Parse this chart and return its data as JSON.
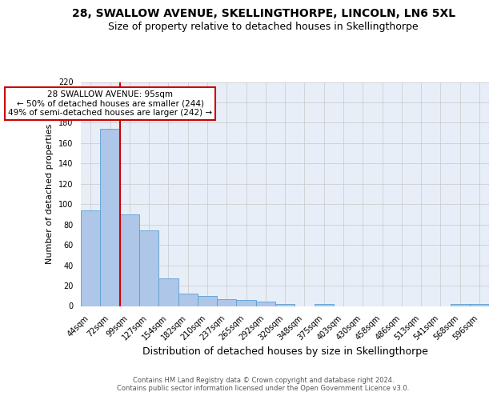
{
  "title": "28, SWALLOW AVENUE, SKELLINGTHORPE, LINCOLN, LN6 5XL",
  "subtitle": "Size of property relative to detached houses in Skellingthorpe",
  "xlabel": "Distribution of detached houses by size in Skellingthorpe",
  "ylabel": "Number of detached properties",
  "categories": [
    "44sqm",
    "72sqm",
    "99sqm",
    "127sqm",
    "154sqm",
    "182sqm",
    "210sqm",
    "237sqm",
    "265sqm",
    "292sqm",
    "320sqm",
    "348sqm",
    "375sqm",
    "403sqm",
    "430sqm",
    "458sqm",
    "486sqm",
    "513sqm",
    "541sqm",
    "568sqm",
    "596sqm"
  ],
  "values": [
    94,
    174,
    90,
    74,
    27,
    12,
    10,
    7,
    6,
    4,
    2,
    0,
    2,
    0,
    0,
    0,
    0,
    0,
    0,
    2,
    2
  ],
  "bar_color": "#aec6e8",
  "bar_edgecolor": "#5a9fd4",
  "red_line_index": 2,
  "red_line_color": "#cc0000",
  "annotation_text": "28 SWALLOW AVENUE: 95sqm\n← 50% of detached houses are smaller (244)\n49% of semi-detached houses are larger (242) →",
  "annotation_box_edgecolor": "#cc0000",
  "annotation_box_facecolor": "#ffffff",
  "ylim": [
    0,
    220
  ],
  "yticks": [
    0,
    20,
    40,
    60,
    80,
    100,
    120,
    140,
    160,
    180,
    200,
    220
  ],
  "background_color": "#e8eef8",
  "footer": "Contains HM Land Registry data © Crown copyright and database right 2024.\nContains public sector information licensed under the Open Government Licence v3.0.",
  "title_fontsize": 10,
  "subtitle_fontsize": 9,
  "xlabel_fontsize": 9,
  "ylabel_fontsize": 8,
  "tick_fontsize": 7,
  "annotation_fontsize": 7.5,
  "footer_fontsize": 6
}
